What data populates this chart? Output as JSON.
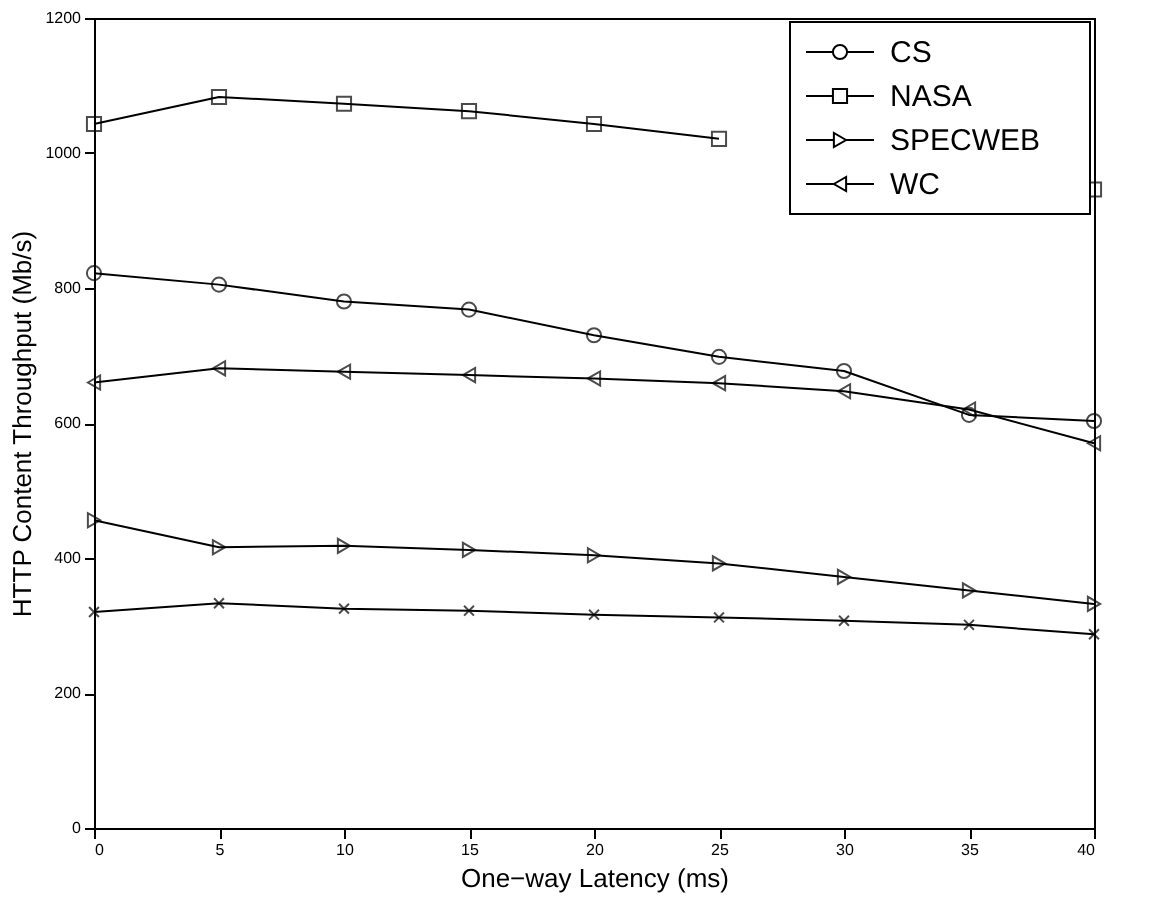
{
  "chart_data": {
    "type": "line",
    "xlabel": "One−way Latency (ms)",
    "ylabel": "HTTP Content Throughput (Mb/s)",
    "x": [
      0,
      5,
      10,
      15,
      20,
      25,
      30,
      35,
      40
    ],
    "series": [
      {
        "name": "CS",
        "color": "#000000",
        "marker": "circle",
        "values": [
          822,
          805,
          780,
          768,
          730,
          698,
          677,
          612,
          603
        ]
      },
      {
        "color": "#000000",
        "marker": "cross",
        "values": [
          320,
          333,
          325,
          322,
          316,
          312,
          307,
          301,
          287
        ]
      },
      {
        "name": "NASA",
        "color": "#000000",
        "marker": "square",
        "values": [
          1043,
          1083,
          1073,
          1062,
          1043,
          1021,
          null,
          null,
          946
        ]
      },
      {
        "name": "SPECWEB",
        "color": "#000000",
        "marker": "triangle-right",
        "values": [
          456,
          416,
          418,
          412,
          404,
          392,
          372,
          352,
          332
        ]
      },
      {
        "name": "WC",
        "color": "#000000",
        "marker": "triangle-left",
        "values": [
          660,
          681,
          676,
          671,
          666,
          659,
          647,
          620,
          570
        ]
      }
    ],
    "xlim": [
      0,
      40
    ],
    "xticks": [
      0,
      5,
      10,
      15,
      20,
      25,
      30,
      35,
      40
    ],
    "ylim": [
      0,
      1200
    ],
    "yticks": [
      0,
      200,
      400,
      600,
      800,
      1000,
      1200
    ],
    "grid": false,
    "legend": "top right",
    "line_style": "solid"
  }
}
